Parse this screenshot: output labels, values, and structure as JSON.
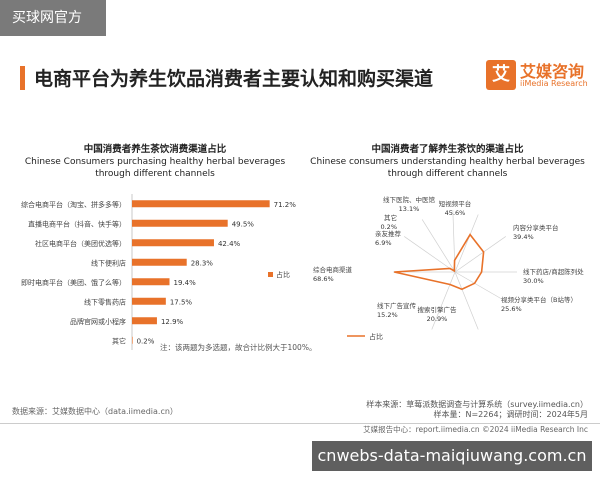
{
  "watermark_top": "买球网官方",
  "page_title": "电商平台为养生饮品消费者主要认知和购买渠道",
  "brand": {
    "logo_char": "艾",
    "name_cn": "艾媒咨询",
    "name_en": "iiMedia Research"
  },
  "colors": {
    "accent": "#e8722a",
    "text": "#333333"
  },
  "chart_data": [
    {
      "type": "bar",
      "orientation": "horizontal",
      "title": "中国消费者养生茶饮消费渠道占比",
      "subtitle": "Chinese Consumers purchasing healthy herbal beverages through different channels",
      "categories": [
        "综合电商平台（淘宝、拼多多等）",
        "直播电商平台（抖音、快手等）",
        "社区电商平台（美团优选等）",
        "线下便利店",
        "即时电商平台（美团、饿了么等）",
        "线下零售药店",
        "品牌官网或小程序",
        "其它"
      ],
      "values": [
        71.2,
        49.5,
        42.4,
        28.3,
        19.4,
        17.5,
        12.9,
        0.2
      ],
      "value_labels": [
        "71.2%",
        "49.5%",
        "42.4%",
        "28.3%",
        "19.4%",
        "17.5%",
        "12.9%",
        "0.2%"
      ],
      "legend": "占比",
      "legend_position": "right",
      "note": "注：该两题为多选题，故合计比例大于100%。"
    },
    {
      "type": "radar",
      "title": "中国消费者了解养生茶饮的渠道占比",
      "subtitle": "Chinese consumers understanding healthy herbal beverages through different channels",
      "categories": [
        "短视频平台",
        "内容分享类平台",
        "线下药店/商超陈列处",
        "视频分享类平台（B站等）",
        "搜索引擎广告",
        "线下广告宣传",
        "综合电商渠道",
        "亲友推荐",
        "其它",
        "线下医院、中医馆"
      ],
      "values": [
        45.6,
        39.4,
        30.0,
        25.6,
        20.9,
        15.2,
        68.6,
        6.9,
        0.2,
        13.1
      ],
      "value_labels": [
        "45.6%",
        "39.4%",
        "30.0%",
        "25.6%",
        "20.9%",
        "15.2%",
        "68.6%",
        "6.9%",
        "0.2%",
        "13.1%"
      ],
      "legend": "占比",
      "legend_position": "bottom-left"
    }
  ],
  "source_left": "数据来源：艾媒数据中心（data.iimedia.cn）",
  "sample_line1": "样本来源：草莓派数据调查与计算系统（survey.iimedia.cn）",
  "sample_line2": "样本量：N=2264；调研时间：2024年5月",
  "footer_text": "艾媒报告中心：report.iimedia.cn   ©2024  iiMedia Research  Inc",
  "watermark_bottom": "cnwebs-data-maiqiuwang.com.cn"
}
